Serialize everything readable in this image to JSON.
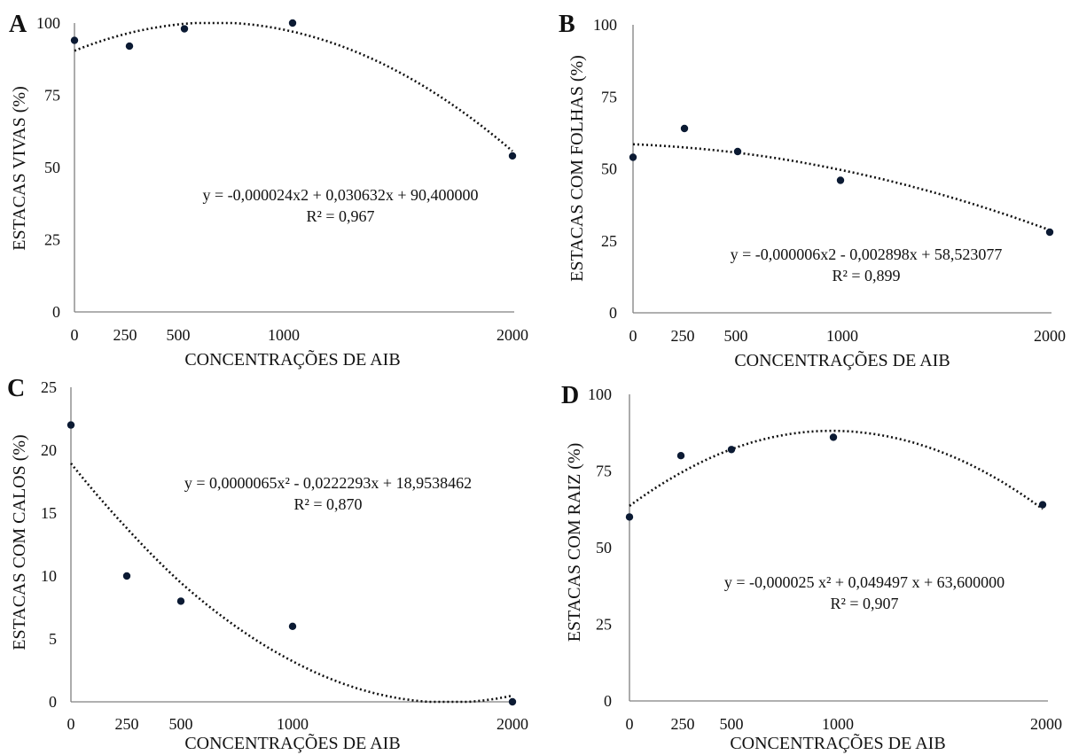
{
  "chart_data": [
    {
      "panel": "A",
      "type": "scatter",
      "xlabel": "CONCENTRAÇÕES DE AIB",
      "ylabel": "ESTACAS VIVAS (%)",
      "x_ticks": [
        "0",
        "250",
        "500",
        "1000",
        "2000"
      ],
      "y_ticks": [
        "0",
        "25",
        "50",
        "75",
        "100"
      ],
      "ylim": [
        0,
        100
      ],
      "x": [
        0,
        250,
        500,
        1000,
        2000
      ],
      "y": [
        94,
        92,
        98,
        100,
        54
      ],
      "trendline": {
        "type": "polynomial",
        "a": -2.4e-05,
        "b": 0.030632,
        "c": 90.4
      },
      "equation": "y = -0,000024x2 + 0,030632x + 90,400000",
      "r2": "R² = 0,967"
    },
    {
      "panel": "B",
      "type": "scatter",
      "xlabel": "CONCENTRAÇÕES DE AIB",
      "ylabel": "ESTACAS COM FOLHAS (%)",
      "x_ticks": [
        "0",
        "250",
        "500",
        "1000",
        "2000"
      ],
      "y_ticks": [
        "0",
        "25",
        "50",
        "75",
        "100"
      ],
      "ylim": [
        0,
        100
      ],
      "x": [
        0,
        250,
        500,
        1000,
        2000
      ],
      "y": [
        54,
        64,
        56,
        46,
        28
      ],
      "trendline": {
        "type": "polynomial",
        "a": -6e-06,
        "b": -0.002898,
        "c": 58.523077
      },
      "equation": "y = -0,000006x2 - 0,002898x + 58,523077",
      "r2": "R² = 0,899"
    },
    {
      "panel": "C",
      "type": "scatter",
      "xlabel": "CONCENTRAÇÕES DE AIB",
      "ylabel": "ESTACAS COM CALOS  (%)",
      "x_ticks": [
        "0",
        "250",
        "500",
        "1000",
        "2000"
      ],
      "y_ticks": [
        "0",
        "5",
        "10",
        "15",
        "20",
        "25"
      ],
      "ylim": [
        0,
        25
      ],
      "x": [
        0,
        250,
        500,
        1000,
        2000
      ],
      "y": [
        22,
        10,
        8,
        6,
        0
      ],
      "trendline": {
        "type": "polynomial",
        "a": 6.5e-06,
        "b": -0.0222293,
        "c": 18.9538462
      },
      "equation": "y = 0,0000065x² - 0,0222293x + 18,9538462",
      "r2": "R² = 0,870"
    },
    {
      "panel": "D",
      "type": "scatter",
      "xlabel": "CONCENTRAÇÕES DE AIB",
      "ylabel": "ESTACAS COM RAIZ (%)",
      "x_ticks": [
        "0",
        "250",
        "500",
        "1000",
        "2000"
      ],
      "y_ticks": [
        "0",
        "25",
        "50",
        "75",
        "100"
      ],
      "ylim": [
        0,
        100
      ],
      "x": [
        0,
        250,
        500,
        1000,
        2000
      ],
      "y": [
        60,
        80,
        82,
        86,
        64
      ],
      "trendline": {
        "type": "polynomial",
        "a": -2.5e-05,
        "b": 0.049497,
        "c": 63.6
      },
      "equation": "y = -0,000025 x² + 0,049497 x + 63,600000",
      "r2": "R² = 0,907"
    }
  ],
  "colors": {
    "marker": "#0b1a33",
    "axis": "#808080",
    "trendline": "#111111",
    "text": "#111111"
  }
}
